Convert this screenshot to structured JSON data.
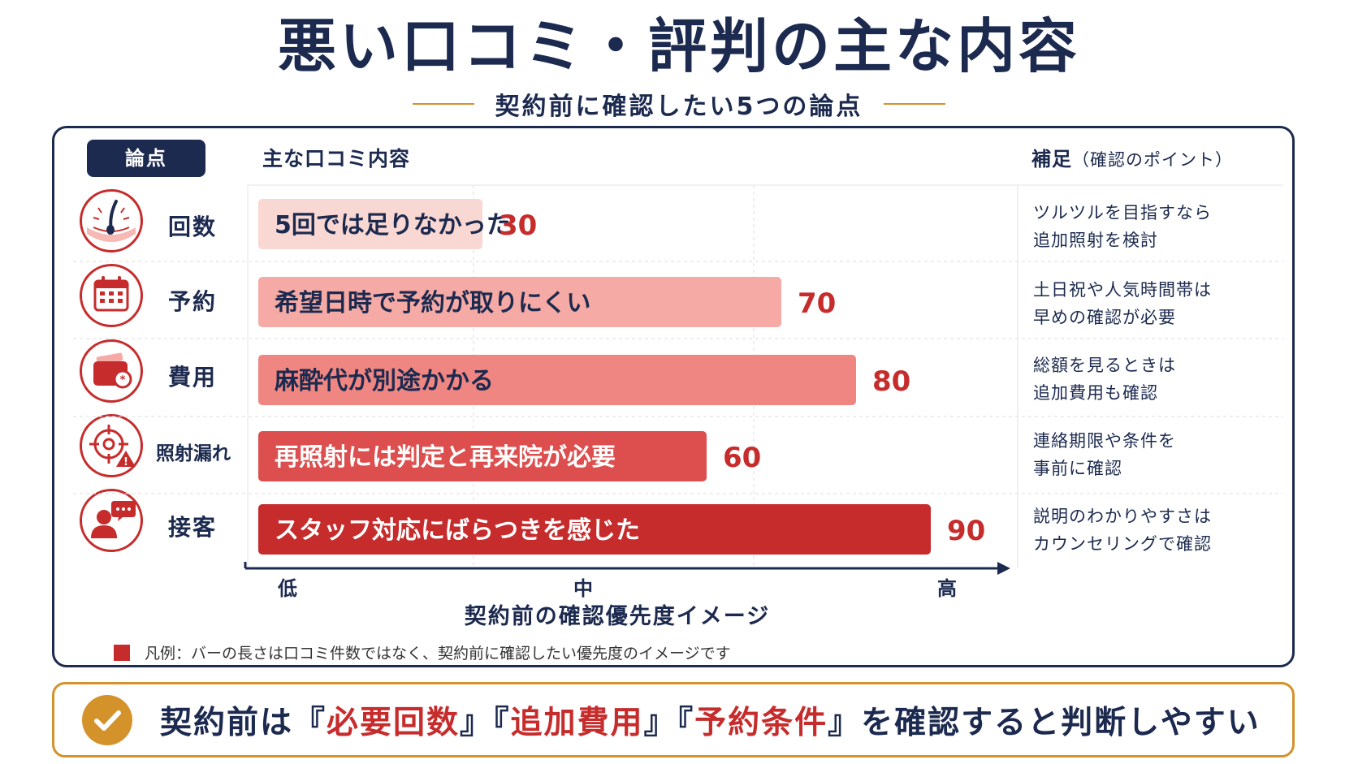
{
  "title": "悪い口コミ・評判の主な内容",
  "subtitle": "契約前に確認したい5つの論点",
  "headers": {
    "point": "論点",
    "main": "主な口コミ内容",
    "note": "補足",
    "note_sub": "（確認のポイント）"
  },
  "rows": [
    {
      "label": "回数",
      "icon": "hair-follicle-icon",
      "note1": "ツルツルを目指すなら",
      "note2": "追加照射を検討"
    },
    {
      "label": "予約",
      "icon": "calendar-icon",
      "note1": "土日祝や人気時間帯は",
      "note2": "早めの確認が必要"
    },
    {
      "label": "費用",
      "icon": "wallet-icon",
      "note1": "総額を見るときは",
      "note2": "追加費用も確認"
    },
    {
      "label": "照射漏れ",
      "icon": "target-warning-icon",
      "note1": "連絡期限や条件を",
      "note2": "事前に確認"
    },
    {
      "label": "接客",
      "icon": "person-chat-icon",
      "note1": "説明のわかりやすさは",
      "note2": "カウンセリングで確認"
    }
  ],
  "chart_data": {
    "type": "bar",
    "orientation": "horizontal",
    "categories": [
      "5回では足りなかった",
      "希望日時で予約が取りにくい",
      "麻酔代が別途かかる",
      "再照射には判定と再来院が必要",
      "スタッフ対応にばらつきを感じた"
    ],
    "values": [
      30,
      70,
      80,
      60,
      90
    ],
    "colors": [
      "#f9d7d2",
      "#f6aaa5",
      "#ef8682",
      "#dd4f4f",
      "#c62c2c"
    ],
    "text_colors": [
      "#1c2a4f",
      "#1c2a4f",
      "#1c2a4f",
      "#ffffff",
      "#ffffff"
    ],
    "value_color": "#c62c2c",
    "xlim": [
      0,
      100
    ],
    "tick_labels": [
      "低",
      "中",
      "高"
    ],
    "xlabel": "契約前の確認優先度イメージ",
    "grid": true
  },
  "legend_text": "凡例：バーの長さは口コミ件数ではなく、契約前に確認したい優先度のイメージです",
  "conclusion": {
    "p1": "契約前は『",
    "h1": "必要回数",
    "p2": "』『",
    "h2": "追加費用",
    "p3": "』『",
    "h3": "予約条件",
    "p4": "』を確認すると判断しやすい"
  },
  "colors": {
    "navy": "#1c2a4f",
    "red": "#c62c2c",
    "gold": "#d4922b"
  }
}
